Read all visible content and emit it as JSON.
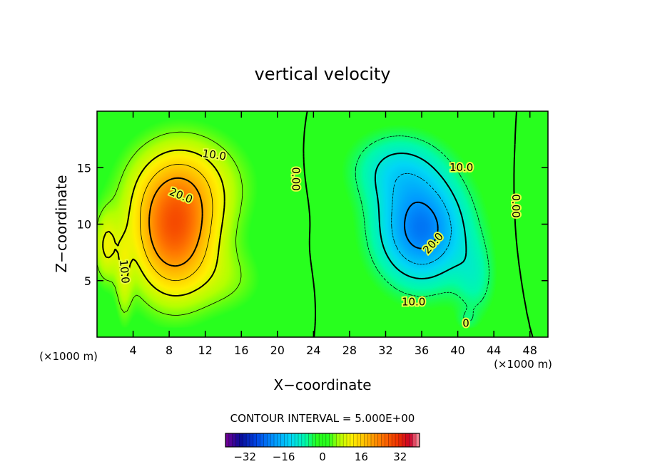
{
  "chart_data": {
    "type": "heatmap",
    "title": "vertical velocity",
    "xlabel": "X−coordinate",
    "ylabel": "Z−coordinate",
    "x_unit_left": "(×1000 m)",
    "x_unit_right": "(×1000 m)",
    "xlim": [
      0,
      50
    ],
    "ylim": [
      0,
      20
    ],
    "x_ticks": [
      4,
      8,
      12,
      16,
      20,
      24,
      28,
      32,
      36,
      40,
      44,
      48
    ],
    "y_ticks": [
      5,
      10,
      15
    ],
    "contour_interval_text": "CONTOUR INTERVAL = 5.000E+00",
    "colorbar": {
      "min": -40,
      "max": 40,
      "ticks": [
        -32,
        -16,
        0,
        16,
        32
      ],
      "tick_labels": [
        "−32",
        "−16",
        "0",
        "16",
        "32"
      ]
    },
    "contour_labels": [
      {
        "text": "10.0",
        "x": 13.0,
        "z": 16.1,
        "rot": 8
      },
      {
        "text": "20.0",
        "x": 9.3,
        "z": 12.5,
        "rot": 22
      },
      {
        "text": "10.0",
        "x": 3.0,
        "z": 5.8,
        "rot": 85
      },
      {
        "text": "0.00",
        "x": 22.0,
        "z": 14.0,
        "rot": 90
      },
      {
        "text": "10.0",
        "x": 40.4,
        "z": 15.0,
        "rot": 0
      },
      {
        "text": "20.0",
        "x": 37.3,
        "z": 8.3,
        "rot": -48
      },
      {
        "text": "10.0",
        "x": 35.1,
        "z": 3.1,
        "rot": 0
      },
      {
        "text": "0.00",
        "x": 46.4,
        "z": 11.6,
        "rot": 90
      },
      {
        "text": "0",
        "x": 40.9,
        "z": 1.2,
        "rot": 0
      }
    ],
    "features": [
      {
        "name": "updraft",
        "center_x": 8.5,
        "center_z": 9.0,
        "peak": 24.0
      },
      {
        "name": "downdraft",
        "center_x": 36.0,
        "center_z": 9.5,
        "peak": -22.5
      }
    ]
  }
}
